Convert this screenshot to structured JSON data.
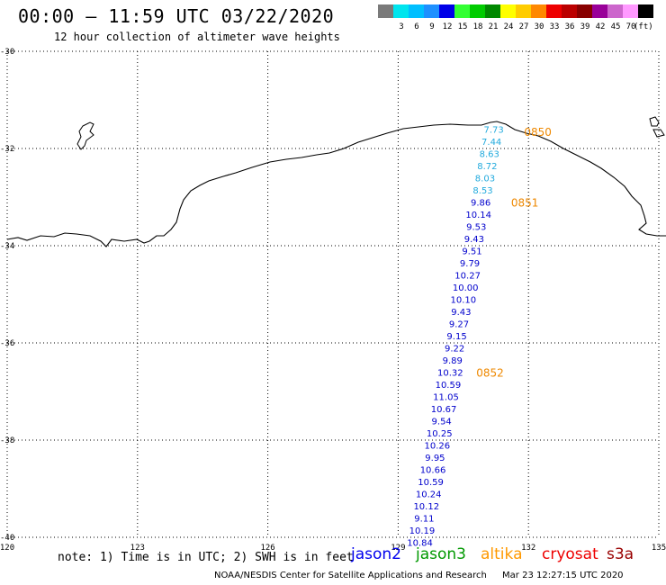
{
  "header": {
    "title": "00:00 – 11:59 UTC 03/22/2020",
    "subtitle": "12 hour collection of altimeter wave heights"
  },
  "scale": {
    "unit": "(ft)",
    "bins": [
      {
        "color": "#7a7a7a",
        "label": ""
      },
      {
        "color": "#00e5ee",
        "label": "3"
      },
      {
        "color": "#00bfff",
        "label": "6"
      },
      {
        "color": "#1e90ff",
        "label": "9"
      },
      {
        "color": "#0000e8",
        "label": "12"
      },
      {
        "color": "#33ff33",
        "label": "15"
      },
      {
        "color": "#00cc00",
        "label": "18"
      },
      {
        "color": "#008800",
        "label": "21"
      },
      {
        "color": "#ffff00",
        "label": "24"
      },
      {
        "color": "#ffcc00",
        "label": "27"
      },
      {
        "color": "#ff8800",
        "label": "30"
      },
      {
        "color": "#ee0000",
        "label": "33"
      },
      {
        "color": "#bb0000",
        "label": "36"
      },
      {
        "color": "#880000",
        "label": "39"
      },
      {
        "color": "#990099",
        "label": "42"
      },
      {
        "color": "#cc66cc",
        "label": "45"
      },
      {
        "color": "#ff99ff",
        "label": "70"
      },
      {
        "color": "#000000",
        "label": ""
      }
    ]
  },
  "axes": {
    "lat_labels": [
      "-30",
      "-32",
      "-34",
      "-36",
      "-38",
      "-40"
    ],
    "lon_labels": [
      "120",
      "123",
      "126",
      "129",
      "132",
      "135"
    ]
  },
  "chart_data": {
    "type": "scatter",
    "points": [
      {
        "lon": 131.2,
        "lat": -31.6,
        "value": "7.73",
        "color": "#22aadd"
      },
      {
        "lon": 131.15,
        "lat": -31.85,
        "value": "7.44",
        "color": "#22aadd"
      },
      {
        "lon": 131.1,
        "lat": -32.1,
        "value": "8.63",
        "color": "#22aadd"
      },
      {
        "lon": 131.05,
        "lat": -32.35,
        "value": "8.72",
        "color": "#22aadd"
      },
      {
        "lon": 131.0,
        "lat": -32.6,
        "value": "8.03",
        "color": "#22aadd"
      },
      {
        "lon": 130.95,
        "lat": -32.85,
        "value": "8.53",
        "color": "#22aadd"
      },
      {
        "lon": 130.9,
        "lat": -33.1,
        "value": "9.86",
        "color": "#0000cc"
      },
      {
        "lon": 130.85,
        "lat": -33.35,
        "value": "10.14",
        "color": "#0000cc"
      },
      {
        "lon": 130.8,
        "lat": -33.6,
        "value": "9.53",
        "color": "#0000cc"
      },
      {
        "lon": 130.75,
        "lat": -33.85,
        "value": "9.43",
        "color": "#0000cc"
      },
      {
        "lon": 130.7,
        "lat": -34.1,
        "value": "9.51",
        "color": "#0000cc"
      },
      {
        "lon": 130.65,
        "lat": -34.35,
        "value": "9.79",
        "color": "#0000cc"
      },
      {
        "lon": 130.6,
        "lat": -34.6,
        "value": "10.27",
        "color": "#0000cc"
      },
      {
        "lon": 130.55,
        "lat": -34.85,
        "value": "10.00",
        "color": "#0000cc"
      },
      {
        "lon": 130.5,
        "lat": -35.1,
        "value": "10.10",
        "color": "#0000cc"
      },
      {
        "lon": 130.45,
        "lat": -35.35,
        "value": "9.43",
        "color": "#0000cc"
      },
      {
        "lon": 130.4,
        "lat": -35.6,
        "value": "9.27",
        "color": "#0000cc"
      },
      {
        "lon": 130.35,
        "lat": -35.85,
        "value": "9.15",
        "color": "#0000cc"
      },
      {
        "lon": 130.3,
        "lat": -36.1,
        "value": "9.22",
        "color": "#0000cc"
      },
      {
        "lon": 130.25,
        "lat": -36.35,
        "value": "9.89",
        "color": "#0000cc"
      },
      {
        "lon": 130.2,
        "lat": -36.6,
        "value": "10.32",
        "color": "#0000cc"
      },
      {
        "lon": 130.15,
        "lat": -36.85,
        "value": "10.59",
        "color": "#0000cc"
      },
      {
        "lon": 130.1,
        "lat": -37.1,
        "value": "11.05",
        "color": "#0000cc"
      },
      {
        "lon": 130.05,
        "lat": -37.35,
        "value": "10.67",
        "color": "#0000cc"
      },
      {
        "lon": 130.0,
        "lat": -37.6,
        "value": "9.54",
        "color": "#0000cc"
      },
      {
        "lon": 129.95,
        "lat": -37.85,
        "value": "10.25",
        "color": "#0000cc"
      },
      {
        "lon": 129.9,
        "lat": -38.1,
        "value": "10.26",
        "color": "#0000cc"
      },
      {
        "lon": 129.85,
        "lat": -38.35,
        "value": "9.95",
        "color": "#0000cc"
      },
      {
        "lon": 129.8,
        "lat": -38.6,
        "value": "10.66",
        "color": "#0000cc"
      },
      {
        "lon": 129.75,
        "lat": -38.85,
        "value": "10.59",
        "color": "#0000cc"
      },
      {
        "lon": 129.7,
        "lat": -39.1,
        "value": "10.24",
        "color": "#0000cc"
      },
      {
        "lon": 129.65,
        "lat": -39.35,
        "value": "10.12",
        "color": "#0000cc"
      },
      {
        "lon": 129.6,
        "lat": -39.6,
        "value": "9.11",
        "color": "#0000cc"
      },
      {
        "lon": 129.55,
        "lat": -39.85,
        "value": "10.19",
        "color": "#0000cc"
      },
      {
        "lon": 129.5,
        "lat": -40.1,
        "value": "10.84",
        "color": "#0000cc"
      }
    ],
    "time_labels": [
      {
        "lon": 131.9,
        "lat": -31.65,
        "text": "0850"
      },
      {
        "lon": 131.6,
        "lat": -33.1,
        "text": "0851"
      },
      {
        "lon": 130.8,
        "lat": -36.6,
        "text": "0852"
      }
    ],
    "time_label_color": "#ee8800"
  },
  "note": "note: 1) Time is in UTC; 2) SWH is in feet",
  "satellites": [
    {
      "name": "jason2",
      "color": "#0000ee"
    },
    {
      "name": "jason3",
      "color": "#009900"
    },
    {
      "name": "altika",
      "color": "#ff9900"
    },
    {
      "name": "cryosat",
      "color": "#ee0000"
    },
    {
      "name": "s3a",
      "color": "#990000"
    }
  ],
  "footer": {
    "credit": "NOAA/NESDIS Center for Satellite Applications and Research",
    "timestamp": "Mar 23 12:27:15 UTC 2020"
  }
}
